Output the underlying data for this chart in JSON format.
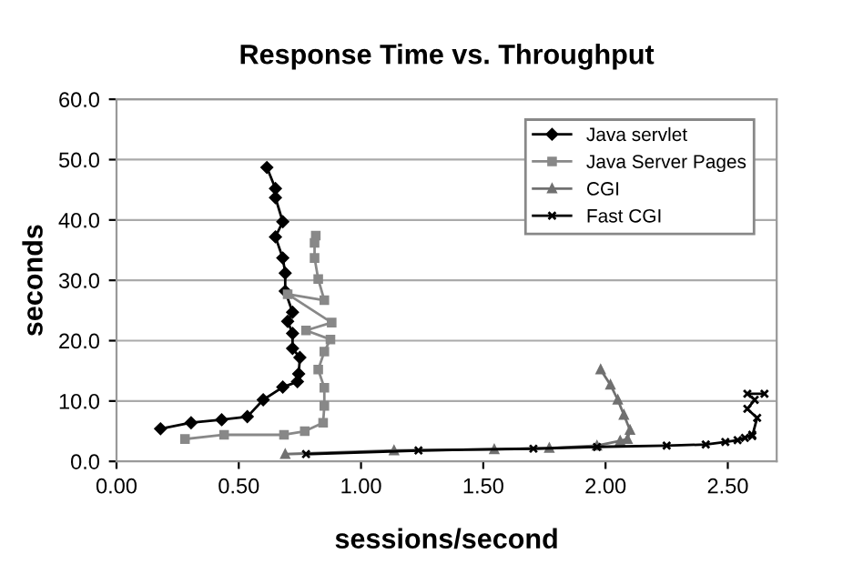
{
  "chart_data": {
    "type": "line",
    "title": "Response Time vs. Throughput",
    "xlabel": "sessions/second",
    "ylabel": "seconds",
    "xlim": [
      0,
      2.7
    ],
    "xticks": [
      {
        "value": 0,
        "label": "0.00"
      },
      {
        "value": 0.5,
        "label": "0.50"
      },
      {
        "value": 1,
        "label": "1.00"
      },
      {
        "value": 1.5,
        "label": "1.50"
      },
      {
        "value": 2,
        "label": "2.00"
      },
      {
        "value": 2.5,
        "label": "2.50"
      }
    ],
    "ylim": [
      0,
      60
    ],
    "yticks": [
      {
        "value": 0,
        "label": "0.0"
      },
      {
        "value": 10,
        "label": "10.0"
      },
      {
        "value": 20,
        "label": "20.0"
      },
      {
        "value": 30,
        "label": "30.0"
      },
      {
        "value": 40,
        "label": "40.0"
      },
      {
        "value": 50,
        "label": "50.0"
      },
      {
        "value": 60,
        "label": "60.0"
      }
    ],
    "grid": "y",
    "legend": "top right",
    "series": [
      {
        "name": "Java servlet",
        "color": "#000000",
        "marker": "diamond",
        "x": [
          0.18,
          0.305,
          0.43,
          0.535,
          0.6,
          0.68,
          0.74,
          0.745,
          0.75,
          0.72,
          0.72,
          0.7,
          0.72,
          0.69,
          0.69,
          0.68,
          0.65,
          0.68,
          0.65,
          0.65,
          0.615
        ],
        "values": [
          5.4,
          6.4,
          6.9,
          7.4,
          10.2,
          12.3,
          13.2,
          14.5,
          17.2,
          18.7,
          21.2,
          23.2,
          24.7,
          28.2,
          31.2,
          33.7,
          37.2,
          39.7,
          43.7,
          45.2,
          48.7
        ]
      },
      {
        "name": "Java Server Pages",
        "color": "#888888",
        "marker": "square",
        "x": [
          0.28,
          0.44,
          0.685,
          0.77,
          0.845,
          0.85,
          0.85,
          0.825,
          0.85,
          0.875,
          0.775,
          0.88,
          0.7,
          0.85,
          0.825,
          0.81,
          0.81,
          0.815
        ],
        "values": [
          3.7,
          4.4,
          4.4,
          5.0,
          6.4,
          9.2,
          12.2,
          15.2,
          18.2,
          20.2,
          21.7,
          23.0,
          27.7,
          26.7,
          30.2,
          33.7,
          36.2,
          37.4
        ]
      },
      {
        "name": "CGI",
        "color": "#707070",
        "marker": "triangle",
        "x": [
          0.69,
          1.135,
          1.545,
          1.77,
          1.965,
          2.06,
          2.09,
          2.1,
          2.075,
          2.05,
          2.02,
          1.98
        ],
        "values": [
          1.2,
          1.8,
          2.0,
          2.2,
          2.6,
          3.4,
          3.7,
          5.2,
          7.7,
          10.2,
          12.7,
          15.2
        ]
      },
      {
        "name": "Fast CGI",
        "color": "#000000",
        "marker": "cross",
        "x": [
          0.775,
          1.235,
          1.705,
          1.965,
          2.25,
          2.41,
          2.49,
          2.54,
          2.57,
          2.6,
          2.6,
          2.62,
          2.58,
          2.61,
          2.58,
          2.65
        ],
        "values": [
          1.2,
          1.8,
          2.1,
          2.4,
          2.6,
          2.8,
          3.2,
          3.5,
          3.9,
          4.4,
          4.2,
          7.2,
          8.7,
          10.2,
          11.2,
          11.2
        ]
      }
    ]
  }
}
